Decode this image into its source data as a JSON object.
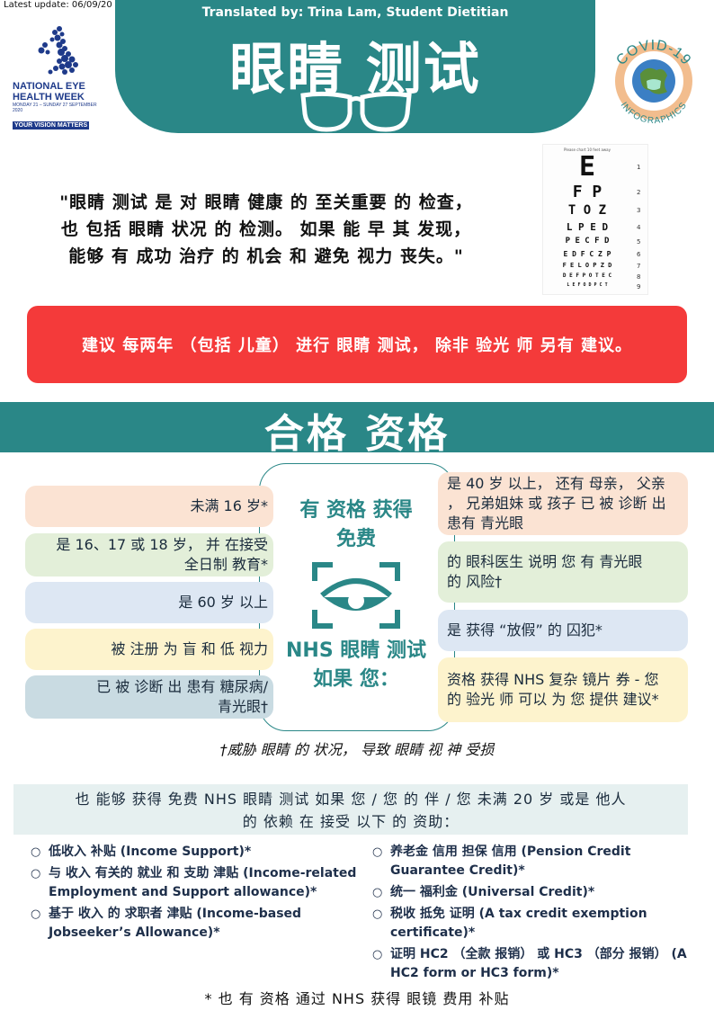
{
  "header": {
    "update": "Latest update: 06/09/20",
    "translated": "Translated by:  Trina Lam,  Student Dietitian",
    "title": "眼睛 测试",
    "nehw": {
      "line1": "NATIONAL EYE",
      "line2": "HEALTH WEEK",
      "dates": "MONDAY 21 – SUNDAY 27 SEPTEMBER 2020",
      "tagline": "YOUR VISION MATTERS"
    },
    "covid": {
      "top": "COVID-19",
      "bottom": "INFOGRAPHICS"
    }
  },
  "quote": {
    "line1": "\"眼睛 测试 是 对 眼睛 健康 的 至关重要 的 检查，",
    "line2": "也 包括 眼睛 状况 的 检测。 如果 能 早 其 发现，",
    "line3": "能够 有 成功 治疗 的 机会 和 避免 视力 丧失。\""
  },
  "eye_chart": {
    "caption": "Please chart 10 feet away",
    "rows": [
      {
        "letters": "E",
        "num": "1"
      },
      {
        "letters": "F P",
        "num": "2"
      },
      {
        "letters": "T O Z",
        "num": "3"
      },
      {
        "letters": "L P E D",
        "num": "4"
      },
      {
        "letters": "P E C F D",
        "num": "5"
      },
      {
        "letters": "E D F C Z P",
        "num": "6"
      },
      {
        "letters": "F E L O P Z D",
        "num": "7"
      },
      {
        "letters": "D E F P O T E C",
        "num": "8"
      },
      {
        "letters": "L E F O D P C T",
        "num": "9"
      }
    ]
  },
  "banner": "建议 每两年 （包括 儿童） 进行 眼睛 测试， 除非 验光 师 另有 建议。",
  "eligibility": {
    "title": "合格 资格",
    "center_top": [
      "有 资格 获得",
      "免费"
    ],
    "center_bottom": [
      "NHS 眼睛 测试",
      "如果 您："
    ],
    "left": [
      [
        "未满 16 岁*"
      ],
      [
        "是 16、17 或 18 岁， 并 在接受",
        "全日制 教育*"
      ],
      [
        "是 60 岁 以上"
      ],
      [
        "被 注册 为 盲 和 低 视力"
      ],
      [
        "已 被 诊断 出 患有 糖尿病/",
        "青光眼†"
      ]
    ],
    "right": [
      [
        "是 40 岁 以上， 还有 母亲， 父亲",
        "， 兄弟姐妹 或 孩子 已 被 诊断 出",
        "患有 青光眼"
      ],
      [
        "的 眼科医生 说明 您 有 青光眼",
        "的 风险†"
      ],
      [
        "是 获得 “放假” 的 囚犯*"
      ],
      [
        "资格 获得 NHS 复杂 镜片 券 - 您",
        "的 验光 师 可以 为 您 提供 建议*"
      ]
    ],
    "footnote": "†威胁 眼睛 的 状况， 导致 眼睛 视 神 受损"
  },
  "benefits": {
    "intro1": "也 能够 获得 免费 NHS 眼睛 测试 如果 您 / 您 的 伴 / 您 未满 20 岁 或是 他人",
    "intro2": "的 依赖 在 接受 以下 的 资助：",
    "bullet": "○",
    "left": [
      "低收入 补贴 (Income Support)*",
      "与 收入 有关的 就业 和 支助 津贴 (Income-related Employment and Support allowance)*",
      "基于 收入 的 求职者 津贴 (Income-based Jobseeker’s Allowance)*"
    ],
    "right": [
      "养老金 信用 担保 信用 (Pension Credit Guarantee Credit)*",
      "统一 福利金 (Universal Credit)*",
      "税收 抵免 证明 (A tax credit exemption certificate)*",
      "证明 HC2 （全款 报销） 或 HC3 （部分 报销） (A HC2 form or HC3 form)*"
    ],
    "note": "* 也 有 资格 通过 NHS 获得 眼镜 费用 补贴"
  },
  "colors": {
    "teal": "#2a8787",
    "red": "#f43a3a",
    "peach": "#fbe3d3",
    "green": "#e3efd9",
    "blue": "#dde7f3",
    "yellow": "#fdf3cd",
    "slate": "#c9dbe2"
  }
}
